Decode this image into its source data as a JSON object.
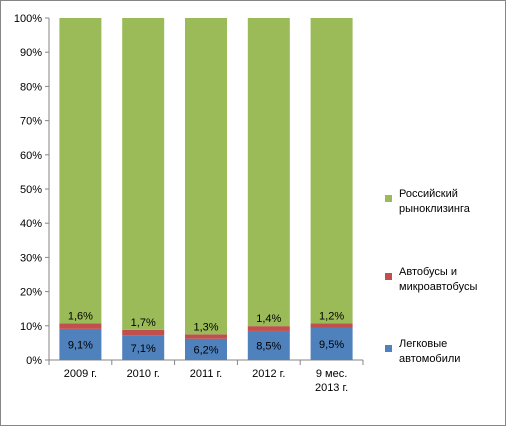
{
  "chart_data": {
    "type": "bar",
    "stacked": true,
    "categories": [
      "2009 г.",
      "2010 г.",
      "2011 г.",
      "2012 г.",
      "9 мес. 2013 г."
    ],
    "series": [
      {
        "name": "Легковые автомобили",
        "color": "#4f81bd",
        "values": [
          9.1,
          7.1,
          6.2,
          8.5,
          9.5
        ],
        "labels": [
          "9,1%",
          "7,1%",
          "6,2%",
          "8,5%",
          "9,5%"
        ]
      },
      {
        "name": "Автобусы и микроавтобусы",
        "color": "#c0504d",
        "values": [
          1.6,
          1.7,
          1.3,
          1.4,
          1.2
        ],
        "labels": [
          "1,6%",
          "1,7%",
          "1,3%",
          "1,4%",
          "1,2%"
        ]
      },
      {
        "name": "Российский рынок лизинга",
        "color": "#9bbb59",
        "values": [
          89.3,
          91.2,
          92.5,
          90.1,
          89.3
        ],
        "labels": []
      }
    ],
    "ylim": [
      0,
      100
    ],
    "yticks": [
      "0%",
      "10%",
      "20%",
      "30%",
      "40%",
      "50%",
      "60%",
      "70%",
      "80%",
      "90%",
      "100%"
    ],
    "gridlines": false,
    "legend": "right"
  },
  "legend": [
    {
      "label": "Российский рыноклизинга",
      "color": "#9bbb59"
    },
    {
      "label": "Автобусы и микроавтобусы",
      "color": "#c0504d"
    },
    {
      "label": "Легковые автомобили",
      "color": "#4f81bd"
    }
  ]
}
